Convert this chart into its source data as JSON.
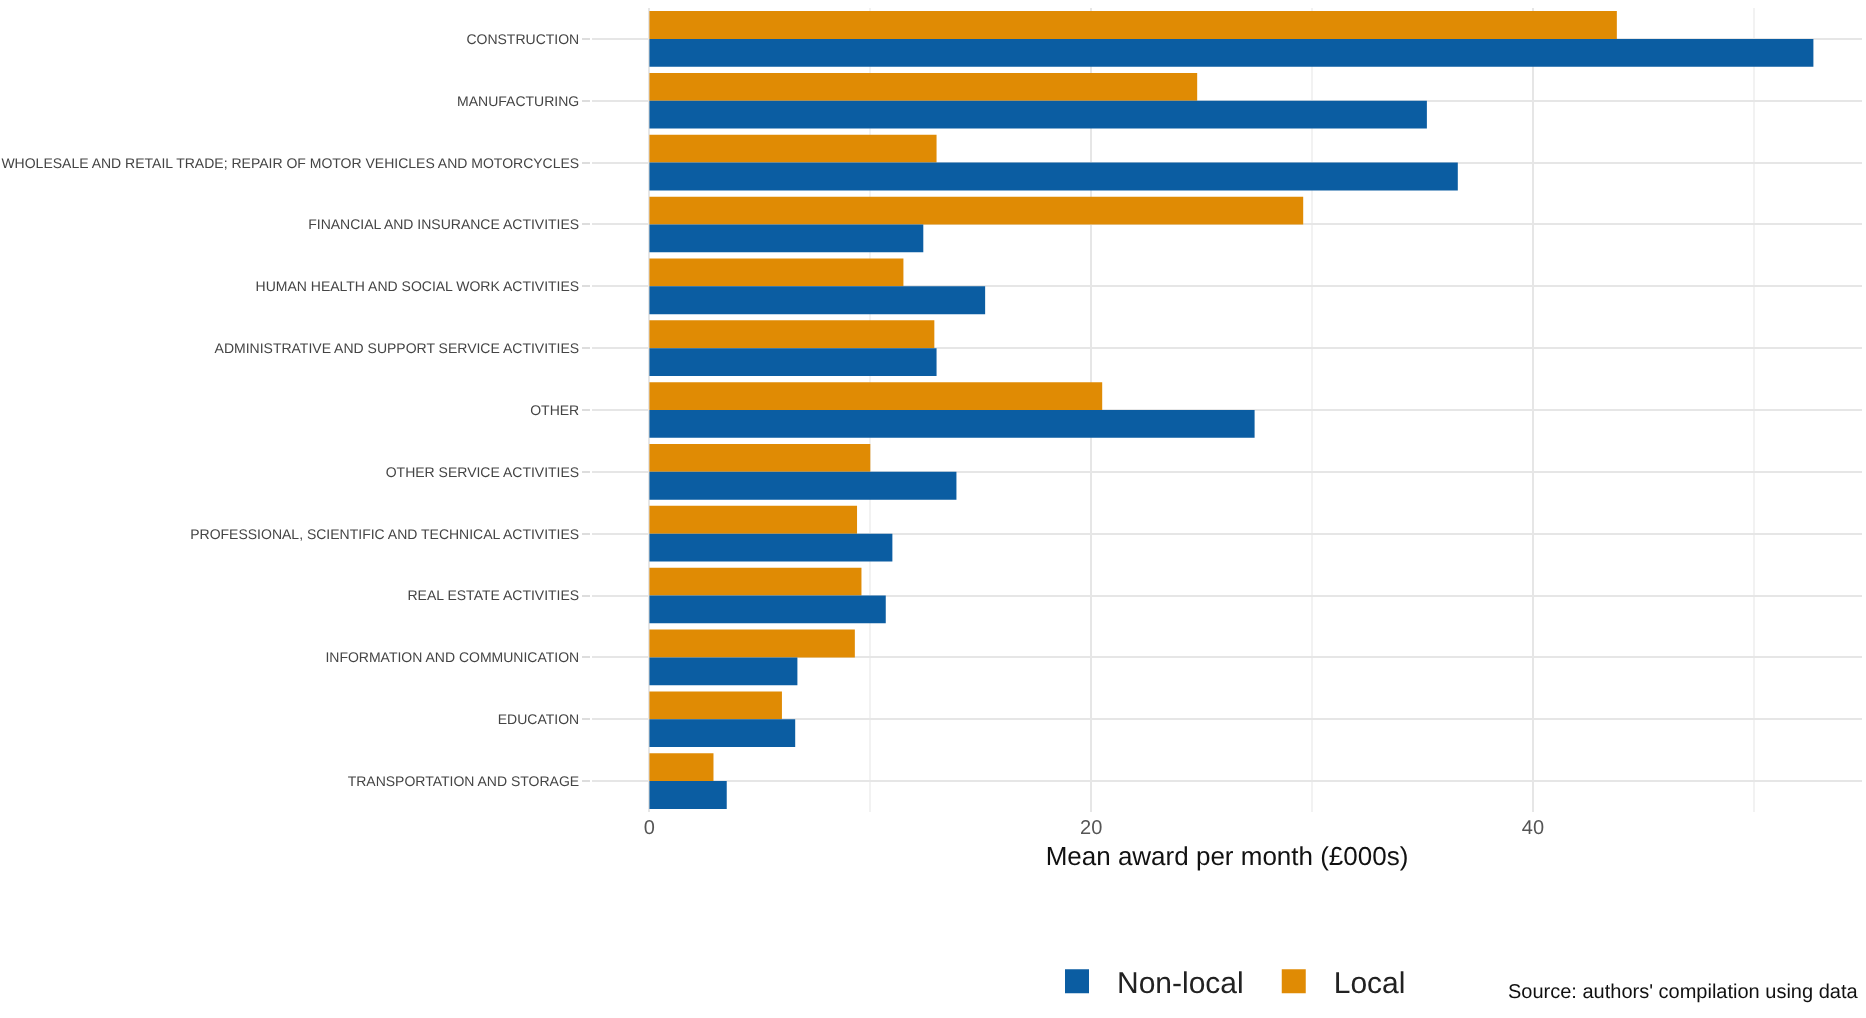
{
  "chart_data": {
    "type": "bar",
    "orientation": "horizontal",
    "xlabel": "Mean award per month (£000s)",
    "categories": [
      "CONSTRUCTION",
      "MANUFACTURING",
      "WHOLESALE AND RETAIL TRADE; REPAIR OF MOTOR VEHICLES AND MOTORCYCLES",
      "FINANCIAL AND INSURANCE ACTIVITIES",
      "HUMAN HEALTH AND SOCIAL WORK ACTIVITIES",
      "ADMINISTRATIVE AND SUPPORT SERVICE ACTIVITIES",
      "OTHER",
      "OTHER SERVICE ACTIVITIES",
      "PROFESSIONAL, SCIENTIFIC AND TECHNICAL ACTIVITIES",
      "REAL ESTATE ACTIVITIES",
      "INFORMATION AND COMMUNICATION",
      "EDUCATION",
      "TRANSPORTATION AND STORAGE"
    ],
    "series": [
      {
        "name": "Non-local",
        "color": "#0b5da2",
        "values": [
          52.7,
          35.2,
          36.6,
          12.4,
          15.2,
          13.0,
          27.4,
          13.9,
          11.0,
          10.7,
          6.7,
          6.6,
          3.5
        ]
      },
      {
        "name": "Local",
        "color": "#e08b04",
        "values": [
          43.8,
          24.8,
          13.0,
          29.6,
          11.5,
          12.9,
          20.5,
          10.0,
          9.4,
          9.6,
          9.3,
          6.0,
          2.9
        ]
      }
    ],
    "xlim": [
      -2.6,
      54.9
    ],
    "xticks": [
      0,
      20,
      40
    ],
    "grid": true,
    "legend": "bottom",
    "annotations": [
      "Source: authors' compilation using data"
    ]
  }
}
